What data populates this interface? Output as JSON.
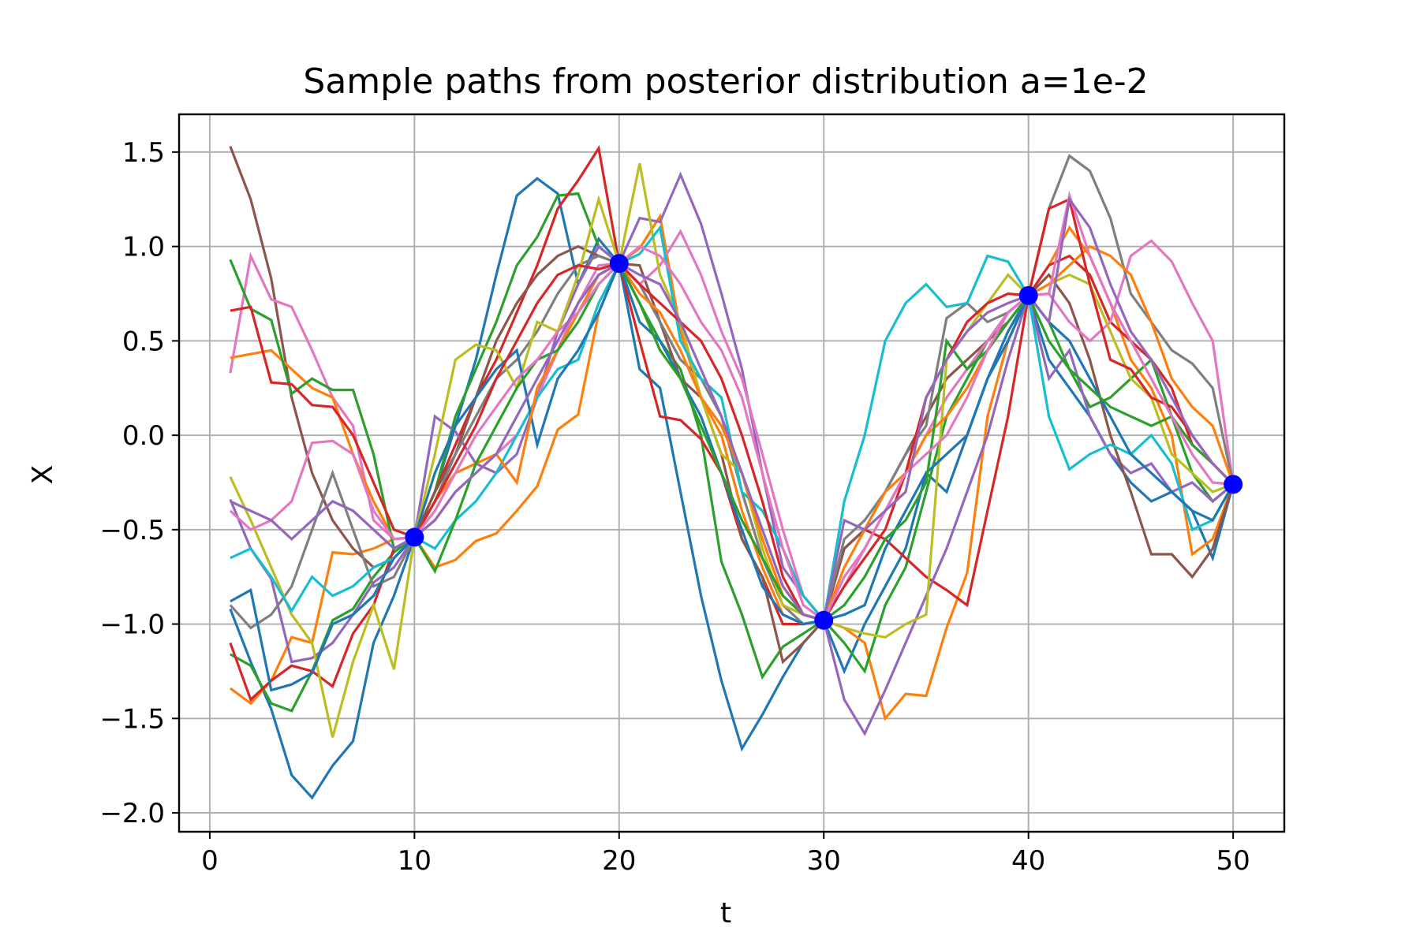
{
  "chart_data": {
    "type": "line",
    "title": "Sample paths from posterior distribution a=1e-2",
    "xlabel": "t",
    "ylabel": "X",
    "xlim": [
      -1.5,
      52.5
    ],
    "ylim": [
      -2.1,
      1.7
    ],
    "xticks": [
      0,
      10,
      20,
      30,
      40,
      50
    ],
    "xtick_labels": [
      "0",
      "10",
      "20",
      "30",
      "40",
      "50"
    ],
    "yticks": [
      -2.0,
      -1.5,
      -1.0,
      -0.5,
      0.0,
      0.5,
      1.0,
      1.5
    ],
    "ytick_labels": [
      "−2.0",
      "−1.5",
      "−1.0",
      "−0.5",
      "0.0",
      "0.5",
      "1.0",
      "1.5"
    ],
    "grid": true,
    "legend": "none",
    "observations": {
      "color": "#0000ff",
      "x": [
        10,
        20,
        30,
        40,
        50
      ],
      "y": [
        -0.54,
        0.91,
        -0.98,
        0.74,
        -0.26
      ]
    },
    "palette": [
      "#1f77b4",
      "#ff7f0e",
      "#2ca02c",
      "#d62728",
      "#9467bd",
      "#8c564b",
      "#e377c2",
      "#7f7f7f",
      "#bcbd22",
      "#17becf"
    ],
    "series_x": [
      1,
      2,
      3,
      4,
      5,
      6,
      7,
      8,
      9,
      10,
      11,
      12,
      13,
      14,
      15,
      16,
      17,
      18,
      19,
      20,
      21,
      22,
      23,
      24,
      25,
      26,
      27,
      28,
      29,
      30,
      31,
      32,
      33,
      34,
      35,
      36,
      37,
      38,
      39,
      40,
      41,
      42,
      43,
      44,
      45,
      46,
      47,
      48,
      49,
      50
    ],
    "series": [
      {
        "color": "#1f77b4",
        "values": [
          -0.92,
          -1.2,
          -1.45,
          -1.8,
          -1.92,
          -1.75,
          -1.62,
          -1.1,
          -0.85,
          -0.54,
          -0.3,
          0.05,
          0.4,
          0.85,
          1.27,
          1.36,
          1.28,
          0.8,
          1.04,
          0.91,
          0.35,
          0.25,
          -0.3,
          -0.85,
          -1.3,
          -1.66,
          -1.48,
          -1.28,
          -1.1,
          -0.98,
          -1.25,
          -1.0,
          -0.8,
          -0.6,
          -0.2,
          -0.3,
          0.0,
          0.3,
          0.55,
          0.74,
          0.4,
          0.25,
          0.1,
          -0.1,
          -0.25,
          -0.35,
          -0.3,
          -0.4,
          -0.65,
          -0.26
        ]
      },
      {
        "color": "#ff7f0e",
        "values": [
          -1.34,
          -1.42,
          -1.3,
          -1.07,
          -1.1,
          -0.62,
          -0.63,
          -0.6,
          -0.55,
          -0.54,
          -0.7,
          -0.66,
          -0.56,
          -0.52,
          -0.4,
          -0.27,
          0.03,
          0.11,
          0.65,
          0.91,
          0.99,
          1.16,
          0.55,
          0.2,
          0.0,
          -0.4,
          -0.7,
          -0.95,
          -1.0,
          -0.98,
          -1.02,
          -1.1,
          -1.5,
          -1.37,
          -1.38,
          -1.02,
          -0.73,
          0.1,
          0.5,
          0.74,
          0.9,
          1.1,
          0.95,
          0.7,
          0.4,
          0.25,
          0.0,
          -0.63,
          -0.55,
          -0.26
        ]
      },
      {
        "color": "#2ca02c",
        "values": [
          -1.16,
          -1.22,
          -1.42,
          -1.46,
          -1.25,
          -0.98,
          -0.92,
          -0.75,
          -0.62,
          -0.54,
          -0.3,
          0.1,
          0.35,
          0.6,
          0.9,
          1.05,
          1.27,
          1.28,
          1.0,
          0.91,
          0.7,
          0.5,
          0.35,
          0.0,
          -0.67,
          -0.95,
          -1.28,
          -1.12,
          -1.05,
          -0.98,
          -1.1,
          -1.25,
          -0.9,
          -0.7,
          -0.3,
          0.1,
          0.3,
          0.5,
          0.65,
          0.74,
          0.6,
          0.35,
          0.15,
          0.2,
          0.3,
          0.4,
          0.1,
          -0.2,
          -0.35,
          -0.26
        ]
      },
      {
        "color": "#d62728",
        "values": [
          -1.1,
          -1.4,
          -1.3,
          -1.22,
          -1.25,
          -1.33,
          -1.05,
          -0.9,
          -0.6,
          -0.54,
          -0.3,
          -0.05,
          0.2,
          0.4,
          0.65,
          0.9,
          1.2,
          1.35,
          1.52,
          0.91,
          0.5,
          0.1,
          0.08,
          -0.02,
          -0.2,
          -0.55,
          -0.75,
          -1.0,
          -1.0,
          -0.98,
          -0.6,
          -0.5,
          -0.55,
          -0.65,
          -0.75,
          -0.82,
          -0.9,
          -0.4,
          0.1,
          0.74,
          0.9,
          0.95,
          0.85,
          0.6,
          0.5,
          0.4,
          0.25,
          -0.05,
          -0.15,
          -0.26
        ]
      },
      {
        "color": "#9467bd",
        "values": [
          -0.34,
          -0.6,
          -0.76,
          -1.2,
          -1.18,
          -1.1,
          -0.95,
          -0.78,
          -0.7,
          -0.54,
          0.1,
          0.02,
          -0.15,
          -0.2,
          -0.1,
          0.2,
          0.55,
          0.8,
          1.0,
          0.91,
          1.15,
          1.13,
          1.38,
          1.12,
          0.75,
          0.35,
          -0.2,
          -0.7,
          -0.85,
          -0.98,
          -1.4,
          -1.58,
          -1.35,
          -1.1,
          -0.85,
          -0.6,
          -0.3,
          0.0,
          0.4,
          0.74,
          0.3,
          0.45,
          0.1,
          -0.1,
          -0.2,
          -0.15,
          -0.3,
          -0.25,
          -0.35,
          -0.26
        ]
      },
      {
        "color": "#8c564b",
        "values": [
          1.53,
          1.25,
          0.83,
          0.2,
          -0.2,
          -0.45,
          -0.6,
          -0.7,
          -0.65,
          -0.54,
          -0.3,
          -0.1,
          0.2,
          0.5,
          0.7,
          0.85,
          0.95,
          1.0,
          0.95,
          0.91,
          0.9,
          0.6,
          0.3,
          0.2,
          -0.1,
          -0.55,
          -0.75,
          -1.2,
          -1.1,
          -0.98,
          -0.6,
          -0.5,
          -0.3,
          -0.1,
          0.1,
          0.3,
          0.4,
          0.5,
          0.6,
          0.74,
          0.85,
          0.7,
          0.4,
          0.0,
          -0.3,
          -0.63,
          -0.63,
          -0.75,
          -0.6,
          -0.26
        ]
      },
      {
        "color": "#e377c2",
        "values": [
          0.33,
          0.95,
          0.72,
          0.68,
          0.45,
          0.2,
          0.05,
          -0.45,
          -0.55,
          -0.54,
          -0.45,
          -0.3,
          -0.2,
          -0.1,
          0.0,
          0.2,
          0.45,
          0.7,
          0.9,
          0.91,
          0.8,
          0.9,
          1.08,
          0.85,
          0.55,
          0.3,
          -0.1,
          -0.5,
          -0.85,
          -0.98,
          -0.8,
          -0.6,
          -0.4,
          -0.2,
          0.0,
          0.2,
          0.35,
          0.5,
          0.65,
          0.74,
          0.75,
          0.6,
          0.5,
          0.6,
          0.95,
          1.03,
          0.92,
          0.7,
          0.5,
          -0.26
        ]
      },
      {
        "color": "#7f7f7f",
        "values": [
          -0.9,
          -1.02,
          -0.95,
          -0.8,
          -0.5,
          -0.2,
          -0.5,
          -0.8,
          -0.75,
          -0.54,
          -0.35,
          -0.1,
          0.1,
          0.3,
          0.4,
          0.55,
          0.75,
          0.9,
          0.95,
          0.91,
          0.8,
          0.6,
          0.4,
          0.3,
          0.1,
          -0.3,
          -0.65,
          -0.9,
          -1.0,
          -0.98,
          -0.55,
          -0.45,
          -0.3,
          -0.1,
          0.05,
          0.62,
          0.7,
          0.6,
          0.65,
          0.74,
          1.2,
          1.48,
          1.4,
          1.15,
          0.75,
          0.6,
          0.45,
          0.38,
          0.25,
          -0.26
        ]
      },
      {
        "color": "#bcbd22",
        "values": [
          -0.22,
          -0.45,
          -0.7,
          -0.95,
          -1.1,
          -1.6,
          -1.2,
          -0.9,
          -1.24,
          -0.54,
          -0.1,
          0.4,
          0.48,
          0.45,
          0.25,
          0.6,
          0.55,
          0.85,
          1.25,
          0.91,
          1.44,
          0.85,
          0.6,
          0.2,
          -0.1,
          -0.2,
          -0.6,
          -0.9,
          -0.95,
          -0.98,
          -1.02,
          -1.05,
          -1.07,
          -1.0,
          -0.95,
          0.4,
          0.55,
          0.7,
          0.85,
          0.74,
          0.8,
          0.85,
          0.8,
          0.55,
          0.3,
          0.2,
          -0.1,
          -0.2,
          -0.3,
          -0.26
        ]
      },
      {
        "color": "#17becf",
        "values": [
          -0.65,
          -0.6,
          -0.75,
          -0.93,
          -0.75,
          -0.85,
          -0.8,
          -0.7,
          -0.65,
          -0.54,
          -0.6,
          -0.45,
          -0.35,
          -0.2,
          0.0,
          0.2,
          0.35,
          0.4,
          0.7,
          0.91,
          0.96,
          1.1,
          0.5,
          0.3,
          0.2,
          -0.3,
          -0.4,
          -0.6,
          -0.85,
          -0.98,
          -0.35,
          0.0,
          0.5,
          0.7,
          0.8,
          0.68,
          0.7,
          0.95,
          0.92,
          0.74,
          0.1,
          -0.18,
          -0.1,
          -0.05,
          -0.1,
          0.0,
          -0.15,
          -0.5,
          -0.45,
          -0.26
        ]
      },
      {
        "color": "#1f77b4",
        "values": [
          -0.88,
          -0.82,
          -1.35,
          -1.32,
          -1.26,
          -1.0,
          -0.95,
          -0.85,
          -0.65,
          -0.54,
          -0.2,
          0.05,
          0.2,
          0.35,
          0.45,
          -0.05,
          0.3,
          0.45,
          0.65,
          0.91,
          0.6,
          0.5,
          0.3,
          0.1,
          -0.2,
          -0.5,
          -0.8,
          -0.95,
          -1.0,
          -0.98,
          -0.95,
          -0.9,
          -0.6,
          -0.4,
          -0.2,
          -0.1,
          0.0,
          0.3,
          0.5,
          0.74,
          0.6,
          0.5,
          0.3,
          0.1,
          -0.1,
          -0.2,
          -0.3,
          -0.4,
          -0.45,
          -0.26
        ]
      },
      {
        "color": "#ff7f0e",
        "values": [
          0.41,
          0.43,
          0.45,
          0.35,
          0.25,
          0.2,
          -0.1,
          -0.35,
          -0.55,
          -0.54,
          -0.35,
          -0.2,
          -0.15,
          -0.1,
          -0.25,
          0.25,
          0.45,
          0.65,
          0.85,
          0.91,
          0.75,
          0.65,
          0.45,
          0.2,
          0.05,
          -0.2,
          -0.55,
          -0.85,
          -0.95,
          -0.98,
          -0.7,
          -0.5,
          -0.3,
          -0.2,
          0.0,
          0.1,
          0.25,
          0.45,
          0.6,
          0.74,
          0.8,
          0.9,
          1.0,
          0.95,
          0.85,
          0.6,
          0.3,
          0.15,
          0.05,
          -0.26
        ]
      },
      {
        "color": "#2ca02c",
        "values": [
          0.93,
          0.67,
          0.61,
          0.22,
          0.3,
          0.24,
          0.24,
          -0.1,
          -0.6,
          -0.54,
          -0.72,
          -0.45,
          -0.15,
          0.05,
          0.25,
          0.4,
          0.45,
          0.6,
          0.8,
          0.91,
          0.7,
          0.45,
          0.3,
          0.05,
          -0.2,
          -0.45,
          -0.65,
          -0.85,
          -0.95,
          -0.98,
          -0.9,
          -0.75,
          -0.55,
          -0.45,
          -0.25,
          0.5,
          0.35,
          0.45,
          0.6,
          0.74,
          0.5,
          0.35,
          0.25,
          0.15,
          0.1,
          0.05,
          0.1,
          -0.05,
          -0.15,
          -0.26
        ]
      },
      {
        "color": "#d62728",
        "values": [
          0.66,
          0.68,
          0.28,
          0.27,
          0.16,
          0.15,
          0.0,
          -0.25,
          -0.5,
          -0.54,
          -0.35,
          -0.15,
          0.05,
          0.3,
          0.5,
          0.7,
          0.85,
          0.9,
          0.88,
          0.91,
          0.8,
          0.7,
          0.6,
          0.5,
          0.3,
          0.0,
          -0.35,
          -0.75,
          -0.95,
          -0.98,
          -0.8,
          -0.65,
          -0.5,
          -0.2,
          0.2,
          0.4,
          0.6,
          0.7,
          0.75,
          0.74,
          1.2,
          1.25,
          0.8,
          0.4,
          0.35,
          0.2,
          0.15,
          0.0,
          -0.15,
          -0.26
        ]
      },
      {
        "color": "#e377c2",
        "values": [
          -0.4,
          -0.5,
          -0.45,
          -0.35,
          -0.04,
          -0.03,
          -0.1,
          -0.4,
          -0.55,
          -0.54,
          -0.4,
          -0.2,
          0.0,
          0.15,
          0.3,
          0.4,
          0.55,
          0.65,
          0.8,
          0.91,
          1.0,
          0.95,
          0.8,
          0.6,
          0.45,
          0.2,
          -0.2,
          -0.6,
          -0.9,
          -0.98,
          -0.75,
          -0.6,
          -0.4,
          -0.2,
          -0.1,
          0.0,
          0.2,
          0.45,
          0.65,
          0.74,
          0.75,
          1.27,
          0.95,
          0.7,
          0.5,
          0.3,
          0.1,
          -0.1,
          -0.25,
          -0.26
        ]
      },
      {
        "color": "#9467bd",
        "values": [
          -0.35,
          -0.4,
          -0.45,
          -0.55,
          -0.45,
          -0.35,
          -0.4,
          -0.5,
          -0.6,
          -0.54,
          -0.45,
          -0.3,
          -0.2,
          -0.1,
          0.1,
          0.3,
          0.5,
          0.7,
          0.85,
          0.91,
          0.85,
          0.8,
          0.6,
          0.35,
          0.1,
          -0.2,
          -0.5,
          -0.8,
          -0.95,
          -0.98,
          -0.45,
          -0.5,
          -0.4,
          -0.3,
          0.2,
          0.4,
          0.55,
          0.65,
          0.7,
          0.74,
          0.6,
          1.25,
          1.1,
          0.8,
          0.55,
          0.4,
          0.2,
          0.0,
          -0.15,
          -0.26
        ]
      }
    ]
  }
}
